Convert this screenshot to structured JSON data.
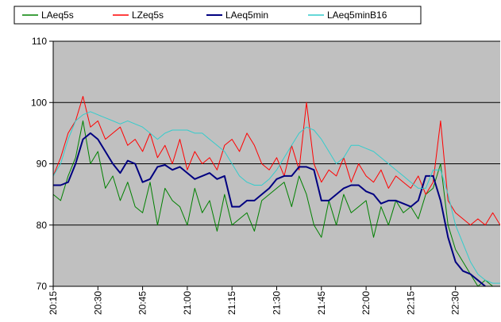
{
  "chart_data": {
    "type": "line",
    "categories": [
      "20:15",
      null,
      null,
      null,
      null,
      null,
      "20:30",
      null,
      null,
      null,
      null,
      null,
      "20:45",
      null,
      null,
      null,
      null,
      null,
      "21:00",
      null,
      null,
      null,
      null,
      null,
      "21:15",
      null,
      null,
      null,
      null,
      null,
      "21:30",
      null,
      null,
      null,
      null,
      null,
      "21:45",
      null,
      null,
      null,
      null,
      null,
      "22:00",
      null,
      null,
      null,
      null,
      null,
      "22:15",
      null,
      null,
      null,
      null,
      null,
      "22:30",
      null,
      null,
      null,
      null,
      null,
      null
    ],
    "series": [
      {
        "name": "LAeq5s",
        "color": "#008000",
        "values": [
          85,
          84,
          88,
          91,
          97,
          90,
          92,
          86,
          88,
          84,
          87,
          83,
          82,
          87,
          80,
          86,
          84,
          83,
          80,
          86,
          82,
          84,
          79,
          85,
          80,
          81,
          82,
          79,
          84,
          85,
          86,
          87,
          83,
          88,
          85,
          80,
          78,
          84,
          80,
          85,
          82,
          83,
          84,
          78,
          83,
          80,
          84,
          82,
          83,
          81,
          85,
          86,
          90,
          80,
          76,
          74,
          72,
          70,
          71,
          70,
          69
        ]
      },
      {
        "name": "LZeq5s",
        "color": "#ff0000",
        "values": [
          88,
          91,
          95,
          97,
          101,
          96,
          97,
          94,
          95,
          96,
          93,
          94,
          92,
          95,
          91,
          93,
          90,
          94,
          89,
          92,
          90,
          91,
          89,
          93,
          94,
          92,
          95,
          93,
          90,
          89,
          91,
          88,
          93,
          89,
          100,
          90,
          87,
          89,
          88,
          91,
          87,
          90,
          88,
          87,
          89,
          86,
          88,
          87,
          86,
          88,
          85,
          87,
          97,
          84,
          82,
          81,
          80,
          81,
          80,
          82,
          80
        ]
      },
      {
        "name": "LAeq5min",
        "color": "#000080",
        "values": [
          86.5,
          86.5,
          87,
          90,
          94,
          95,
          94,
          92,
          90,
          88.5,
          90.5,
          90,
          87,
          87.5,
          89.5,
          89.8,
          89,
          89.5,
          88.5,
          87.5,
          88,
          88.5,
          87.5,
          88,
          83,
          83,
          84,
          84,
          85,
          86,
          87.5,
          88,
          88,
          89.5,
          89.5,
          89,
          84,
          84,
          85,
          86,
          86.5,
          86.5,
          85.5,
          85,
          83.5,
          84,
          84,
          83.5,
          83,
          84,
          88,
          88,
          84,
          78,
          74,
          72.5,
          72,
          71,
          70,
          null,
          null
        ]
      },
      {
        "name": "LAeq5minB16",
        "color": "#33cccc",
        "values": [
          88,
          90,
          94,
          97,
          98,
          98.5,
          98,
          97.5,
          97,
          96.5,
          97,
          96.5,
          96,
          95,
          94,
          95,
          95.5,
          95.5,
          95.5,
          95,
          95,
          94,
          93,
          92,
          90,
          88,
          87,
          86.5,
          86.5,
          87.5,
          89,
          91,
          93,
          95,
          96,
          95.5,
          94,
          92,
          90,
          91,
          93,
          93,
          92.5,
          92,
          91,
          90,
          89,
          88,
          87,
          86,
          86,
          89,
          89,
          85,
          80,
          77,
          74,
          72,
          71,
          70.5,
          70.5
        ]
      }
    ],
    "ylim": [
      70,
      110
    ],
    "yticks": [
      70,
      80,
      90,
      100,
      110
    ],
    "grid": true,
    "legend": "top",
    "plot_background": "#c0c0c0"
  }
}
